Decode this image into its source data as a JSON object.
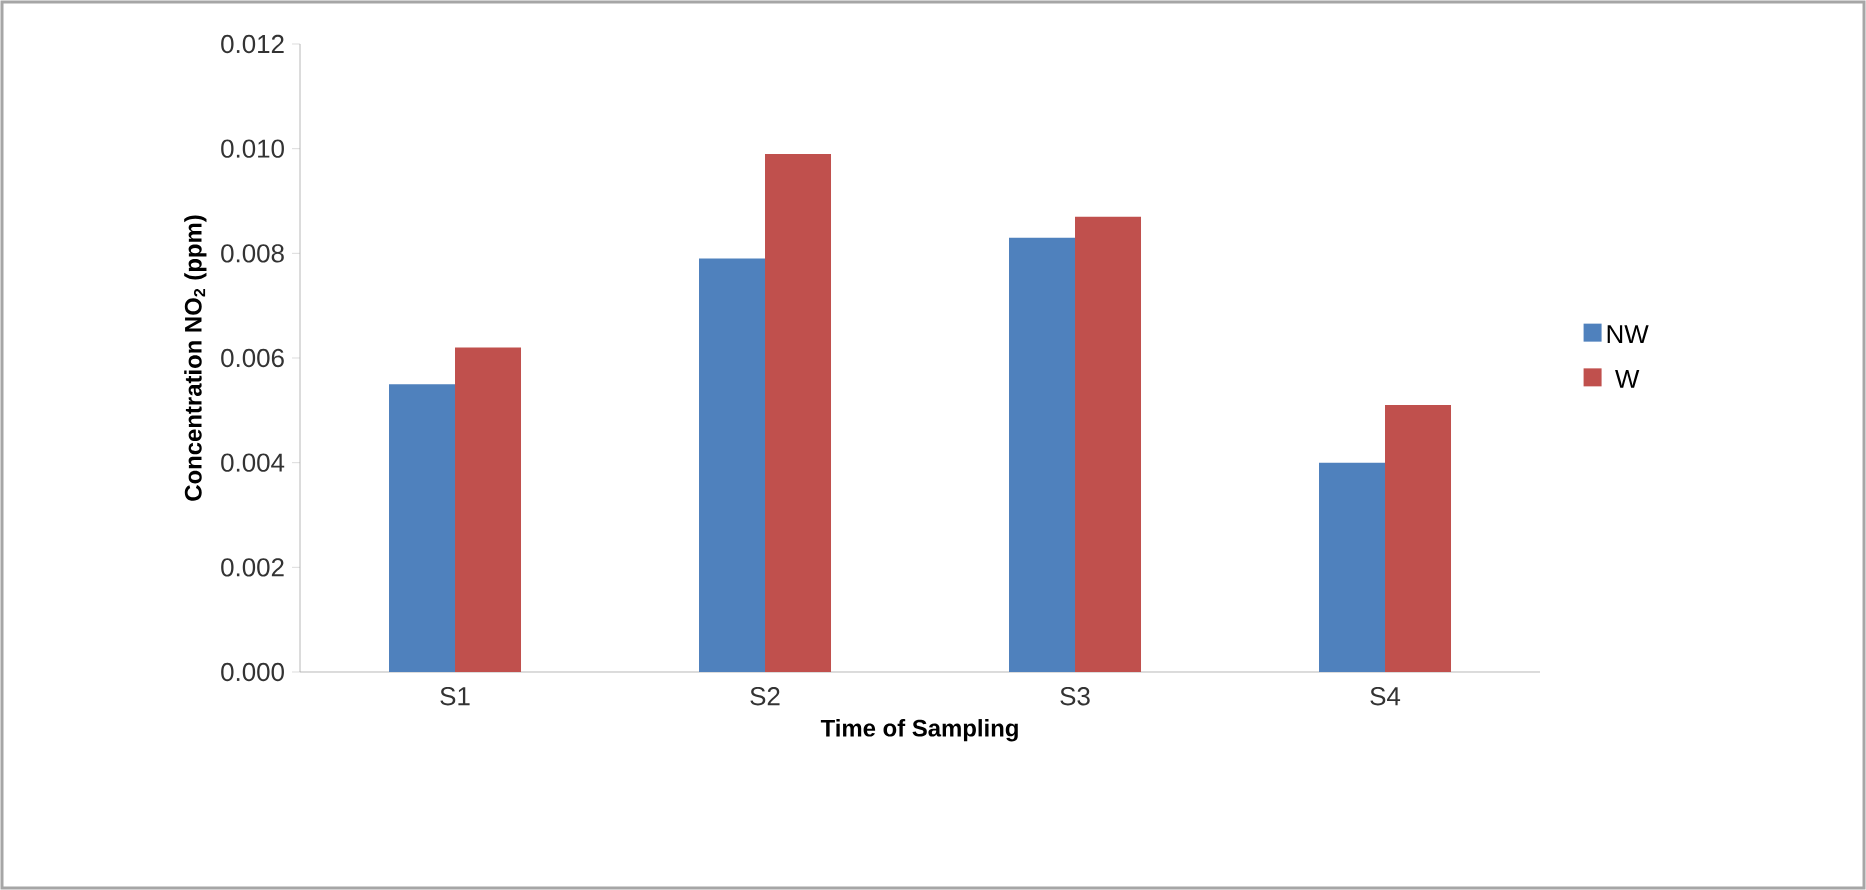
{
  "chart_data": {
    "type": "bar",
    "xlabel": "Time of Sampling",
    "ylabel": "Concentration NO$_{2}$ (ppm)",
    "categories": [
      "S1",
      "S2",
      "S3",
      "S4"
    ],
    "series": [
      {
        "name": "NW",
        "color": "#4f81bd",
        "values": [
          0.0055,
          0.0079,
          0.0083,
          0.004
        ]
      },
      {
        "name": "W",
        "color": "#c0504d",
        "values": [
          0.0062,
          0.0099,
          0.0087,
          0.0051
        ]
      }
    ],
    "ylim": [
      0,
      0.012
    ],
    "yticks": [
      {
        "value": 0,
        "label": "0.000"
      },
      {
        "value": 0.002,
        "label": "0.002"
      },
      {
        "value": 0.004,
        "label": "0.004"
      },
      {
        "value": 0.006,
        "label": "0.006"
      },
      {
        "value": 0.008,
        "label": "0.008"
      },
      {
        "value": 0.01,
        "label": "0.010"
      },
      {
        "value": 0.012,
        "label": "0.012"
      }
    ],
    "grid": false,
    "legend": "right"
  }
}
